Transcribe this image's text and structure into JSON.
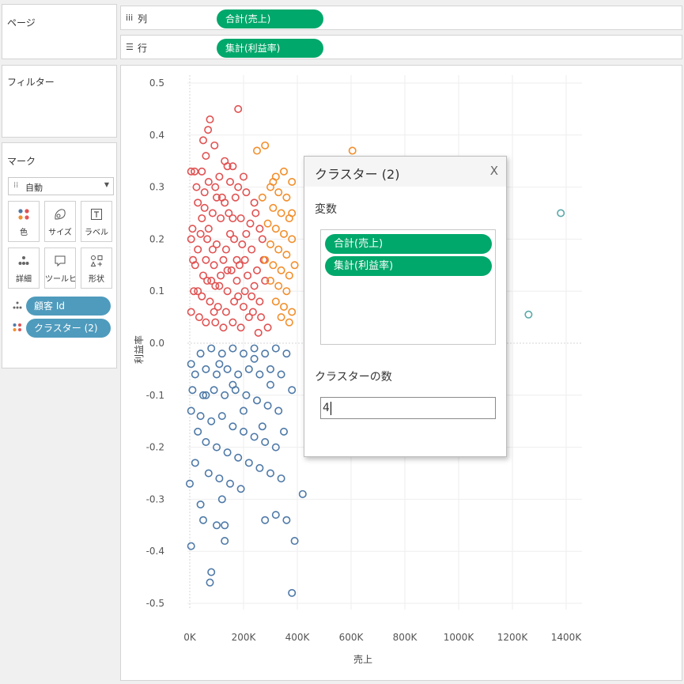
{
  "sidebar": {
    "pages_title": "ページ",
    "filters_title": "フィルター",
    "marks_title": "マーク",
    "mark_type": "自動",
    "mark_buttons": {
      "color": "色",
      "size": "サイズ",
      "label": "ラベル",
      "detail": "詳細",
      "tooltip": "ツールヒ…",
      "shape": "形状"
    },
    "mark_fields": [
      {
        "label": "顧客 Id"
      },
      {
        "label": "クラスター (2)"
      }
    ]
  },
  "shelves": {
    "columns": {
      "icon": "iii",
      "name": "列",
      "pill": "合計(売上)"
    },
    "rows": {
      "icon": "☰",
      "name": "行",
      "pill": "集計(利益率)"
    }
  },
  "colors": {
    "cluster_red": "#e05252",
    "cluster_orange": "#f28e2b",
    "cluster_blue": "#4e79a7",
    "cluster_teal": "#5aa8a8",
    "pill_green": "#00a86b",
    "pill_blue": "#4f9bbd"
  },
  "dialog": {
    "title": "クラスター (2)",
    "close": "X",
    "variables_label": "変数",
    "variables": [
      "合計(売上)",
      "集計(利益率)"
    ],
    "count_label": "クラスターの数",
    "count_value": "4"
  },
  "chart_data": {
    "type": "scatter",
    "title": "",
    "xlabel": "売上",
    "ylabel": "利益率",
    "xlim": [
      0,
      1400000
    ],
    "ylim": [
      -0.5,
      0.5
    ],
    "x_ticks": [
      {
        "value": 0,
        "label": "0K"
      },
      {
        "value": 200000,
        "label": "200K"
      },
      {
        "value": 400000,
        "label": "400K"
      },
      {
        "value": 600000,
        "label": "600K"
      },
      {
        "value": 800000,
        "label": "800K"
      },
      {
        "value": 1000000,
        "label": "1000K"
      },
      {
        "value": 1200000,
        "label": "1200K"
      },
      {
        "value": 1400000,
        "label": "1400K"
      }
    ],
    "y_ticks": [
      {
        "value": 0.5,
        "label": "0.5"
      },
      {
        "value": 0.4,
        "label": "0.4"
      },
      {
        "value": 0.3,
        "label": "0.3"
      },
      {
        "value": 0.2,
        "label": "0.2"
      },
      {
        "value": 0.1,
        "label": "0.1"
      },
      {
        "value": 0.0,
        "label": "0.0"
      },
      {
        "value": -0.1,
        "label": "-0.1"
      },
      {
        "value": -0.2,
        "label": "-0.2"
      },
      {
        "value": -0.3,
        "label": "-0.3"
      },
      {
        "value": -0.4,
        "label": "-0.4"
      },
      {
        "value": -0.5,
        "label": "-0.5"
      }
    ],
    "grid": true,
    "marker": "open-circle",
    "series": [
      {
        "color": "#e05252",
        "points": [
          [
            180000,
            0.45
          ],
          [
            75000,
            0.43
          ],
          [
            68000,
            0.41
          ],
          [
            50000,
            0.39
          ],
          [
            92000,
            0.38
          ],
          [
            60000,
            0.36
          ],
          [
            5000,
            0.33
          ],
          [
            18000,
            0.33
          ],
          [
            45000,
            0.33
          ],
          [
            130000,
            0.35
          ],
          [
            140000,
            0.34
          ],
          [
            160000,
            0.34
          ],
          [
            110000,
            0.32
          ],
          [
            150000,
            0.31
          ],
          [
            200000,
            0.32
          ],
          [
            25000,
            0.3
          ],
          [
            70000,
            0.31
          ],
          [
            95000,
            0.3
          ],
          [
            120000,
            0.28
          ],
          [
            170000,
            0.28
          ],
          [
            210000,
            0.29
          ],
          [
            240000,
            0.27
          ],
          [
            30000,
            0.27
          ],
          [
            55000,
            0.26
          ],
          [
            85000,
            0.25
          ],
          [
            115000,
            0.24
          ],
          [
            145000,
            0.25
          ],
          [
            190000,
            0.24
          ],
          [
            225000,
            0.23
          ],
          [
            260000,
            0.22
          ],
          [
            10000,
            0.22
          ],
          [
            40000,
            0.21
          ],
          [
            65000,
            0.2
          ],
          [
            100000,
            0.19
          ],
          [
            135000,
            0.18
          ],
          [
            165000,
            0.2
          ],
          [
            195000,
            0.19
          ],
          [
            230000,
            0.18
          ],
          [
            270000,
            0.2
          ],
          [
            5000,
            0.2
          ],
          [
            30000,
            0.18
          ],
          [
            60000,
            0.16
          ],
          [
            90000,
            0.15
          ],
          [
            125000,
            0.16
          ],
          [
            155000,
            0.14
          ],
          [
            185000,
            0.15
          ],
          [
            215000,
            0.13
          ],
          [
            250000,
            0.14
          ],
          [
            20000,
            0.15
          ],
          [
            50000,
            0.13
          ],
          [
            80000,
            0.12
          ],
          [
            110000,
            0.11
          ],
          [
            140000,
            0.1
          ],
          [
            175000,
            0.12
          ],
          [
            205000,
            0.1
          ],
          [
            240000,
            0.11
          ],
          [
            280000,
            0.12
          ],
          [
            15000,
            0.1
          ],
          [
            45000,
            0.09
          ],
          [
            75000,
            0.08
          ],
          [
            105000,
            0.07
          ],
          [
            135000,
            0.06
          ],
          [
            165000,
            0.08
          ],
          [
            200000,
            0.07
          ],
          [
            235000,
            0.06
          ],
          [
            265000,
            0.05
          ],
          [
            5000,
            0.06
          ],
          [
            35000,
            0.05
          ],
          [
            60000,
            0.04
          ],
          [
            95000,
            0.04
          ],
          [
            125000,
            0.03
          ],
          [
            160000,
            0.04
          ],
          [
            190000,
            0.03
          ],
          [
            220000,
            0.05
          ],
          [
            255000,
            0.02
          ],
          [
            290000,
            0.03
          ],
          [
            70000,
            0.22
          ],
          [
            150000,
            0.21
          ],
          [
            245000,
            0.25
          ],
          [
            175000,
            0.16
          ],
          [
            115000,
            0.13
          ],
          [
            85000,
            0.18
          ],
          [
            205000,
            0.16
          ],
          [
            275000,
            0.16
          ],
          [
            45000,
            0.24
          ],
          [
            130000,
            0.27
          ],
          [
            30000,
            0.1
          ],
          [
            95000,
            0.11
          ],
          [
            160000,
            0.24
          ],
          [
            230000,
            0.09
          ],
          [
            55000,
            0.29
          ],
          [
            180000,
            0.3
          ],
          [
            100000,
            0.28
          ],
          [
            260000,
            0.08
          ],
          [
            12000,
            0.16
          ],
          [
            65000,
            0.12
          ],
          [
            140000,
            0.14
          ],
          [
            210000,
            0.21
          ],
          [
            90000,
            0.06
          ],
          [
            180000,
            0.09
          ]
        ]
      },
      {
        "color": "#f28e2b",
        "points": [
          [
            605000,
            0.37
          ],
          [
            500000,
            0.35
          ],
          [
            280000,
            0.38
          ],
          [
            250000,
            0.37
          ],
          [
            320000,
            0.32
          ],
          [
            350000,
            0.33
          ],
          [
            380000,
            0.31
          ],
          [
            300000,
            0.3
          ],
          [
            330000,
            0.29
          ],
          [
            360000,
            0.28
          ],
          [
            270000,
            0.28
          ],
          [
            310000,
            0.26
          ],
          [
            340000,
            0.25
          ],
          [
            370000,
            0.24
          ],
          [
            290000,
            0.23
          ],
          [
            320000,
            0.22
          ],
          [
            350000,
            0.21
          ],
          [
            380000,
            0.2
          ],
          [
            300000,
            0.19
          ],
          [
            330000,
            0.18
          ],
          [
            360000,
            0.17
          ],
          [
            280000,
            0.16
          ],
          [
            310000,
            0.15
          ],
          [
            340000,
            0.14
          ],
          [
            370000,
            0.13
          ],
          [
            300000,
            0.12
          ],
          [
            330000,
            0.11
          ],
          [
            360000,
            0.1
          ],
          [
            320000,
            0.08
          ],
          [
            350000,
            0.07
          ],
          [
            380000,
            0.06
          ],
          [
            340000,
            0.05
          ],
          [
            370000,
            0.04
          ],
          [
            390000,
            0.15
          ],
          [
            380000,
            0.25
          ],
          [
            310000,
            0.31
          ]
        ]
      },
      {
        "color": "#4e79a7",
        "points": [
          [
            5000,
            -0.04
          ],
          [
            40000,
            -0.02
          ],
          [
            80000,
            -0.01
          ],
          [
            120000,
            -0.02
          ],
          [
            160000,
            -0.01
          ],
          [
            200000,
            -0.02
          ],
          [
            240000,
            -0.01
          ],
          [
            280000,
            -0.02
          ],
          [
            320000,
            -0.01
          ],
          [
            360000,
            -0.02
          ],
          [
            20000,
            -0.06
          ],
          [
            60000,
            -0.05
          ],
          [
            100000,
            -0.06
          ],
          [
            140000,
            -0.05
          ],
          [
            180000,
            -0.06
          ],
          [
            220000,
            -0.05
          ],
          [
            260000,
            -0.06
          ],
          [
            300000,
            -0.05
          ],
          [
            340000,
            -0.06
          ],
          [
            380000,
            -0.09
          ],
          [
            10000,
            -0.09
          ],
          [
            50000,
            -0.1
          ],
          [
            90000,
            -0.09
          ],
          [
            130000,
            -0.1
          ],
          [
            170000,
            -0.09
          ],
          [
            210000,
            -0.1
          ],
          [
            250000,
            -0.11
          ],
          [
            290000,
            -0.12
          ],
          [
            330000,
            -0.13
          ],
          [
            5000,
            -0.13
          ],
          [
            40000,
            -0.14
          ],
          [
            80000,
            -0.15
          ],
          [
            120000,
            -0.14
          ],
          [
            160000,
            -0.16
          ],
          [
            200000,
            -0.17
          ],
          [
            240000,
            -0.18
          ],
          [
            280000,
            -0.19
          ],
          [
            320000,
            -0.2
          ],
          [
            30000,
            -0.17
          ],
          [
            60000,
            -0.19
          ],
          [
            100000,
            -0.2
          ],
          [
            140000,
            -0.21
          ],
          [
            180000,
            -0.22
          ],
          [
            220000,
            -0.23
          ],
          [
            260000,
            -0.24
          ],
          [
            300000,
            -0.25
          ],
          [
            340000,
            -0.26
          ],
          [
            20000,
            -0.23
          ],
          [
            70000,
            -0.25
          ],
          [
            110000,
            -0.26
          ],
          [
            150000,
            -0.27
          ],
          [
            190000,
            -0.28
          ],
          [
            0,
            -0.27
          ],
          [
            40000,
            -0.31
          ],
          [
            120000,
            -0.3
          ],
          [
            420000,
            -0.29
          ],
          [
            320000,
            -0.33
          ],
          [
            360000,
            -0.34
          ],
          [
            280000,
            -0.34
          ],
          [
            50000,
            -0.34
          ],
          [
            100000,
            -0.35
          ],
          [
            130000,
            -0.35
          ],
          [
            390000,
            -0.38
          ],
          [
            5000,
            -0.39
          ],
          [
            80000,
            -0.44
          ],
          [
            75000,
            -0.46
          ],
          [
            380000,
            -0.48
          ],
          [
            130000,
            -0.38
          ],
          [
            160000,
            -0.08
          ],
          [
            240000,
            -0.03
          ],
          [
            60000,
            -0.1
          ],
          [
            200000,
            -0.13
          ],
          [
            300000,
            -0.08
          ],
          [
            350000,
            -0.17
          ],
          [
            110000,
            -0.04
          ],
          [
            270000,
            -0.16
          ]
        ]
      },
      {
        "color": "#5aa8a8",
        "points": [
          [
            1380000,
            0.25
          ],
          [
            1260000,
            0.055
          ]
        ]
      }
    ]
  }
}
